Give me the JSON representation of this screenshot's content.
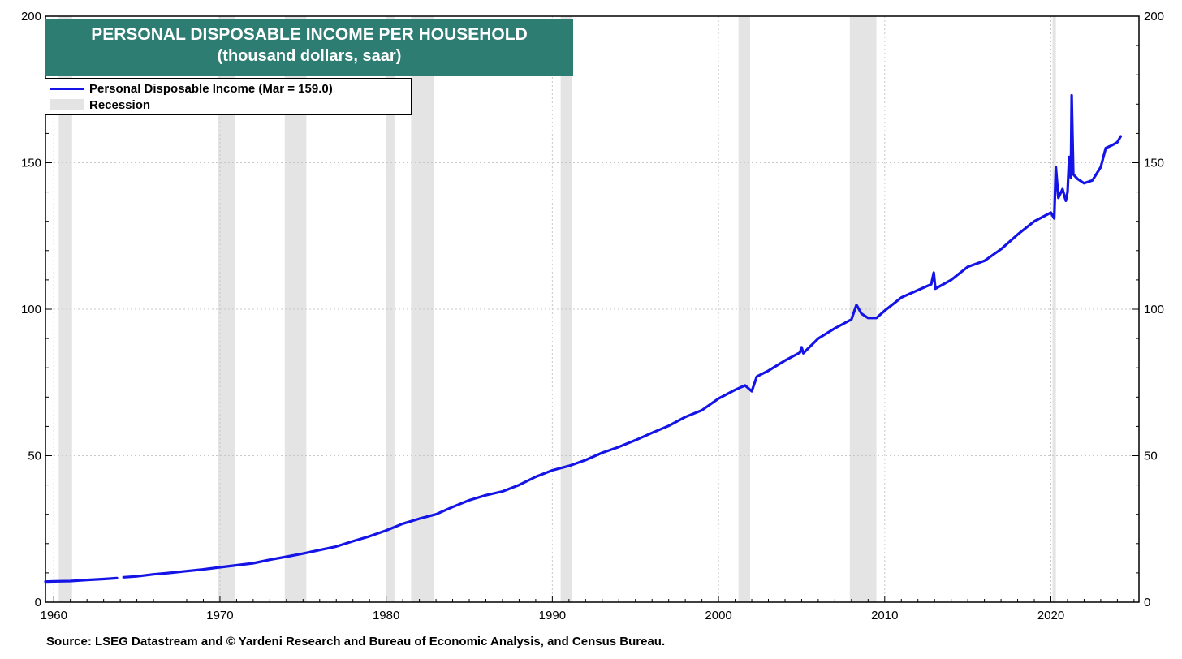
{
  "chart_data": {
    "type": "line",
    "title": "PERSONAL DISPOSABLE INCOME PER HOUSEHOLD",
    "subtitle": "(thousand dollars, saar)",
    "xlim": [
      1959.5,
      2025.3
    ],
    "ylim": [
      0,
      200
    ],
    "y_ticks": [
      0,
      50,
      100,
      150,
      200
    ],
    "x_ticks": [
      1960,
      1970,
      1980,
      1990,
      2000,
      2010,
      2020
    ],
    "grid": true,
    "legend_placement": "top-left",
    "series": [
      {
        "name": "Personal Disposable Income (Mar = 159.0)",
        "color": "#1414e6",
        "points": [
          [
            1959.5,
            7.0
          ],
          [
            1960.0,
            7.1
          ],
          [
            1961.0,
            7.2
          ],
          [
            1962.0,
            7.6
          ],
          [
            1963.0,
            7.9
          ],
          [
            1963.8,
            8.2
          ],
          null,
          [
            1964.2,
            8.5
          ],
          [
            1965.0,
            8.8
          ],
          [
            1966.0,
            9.5
          ],
          [
            1967.0,
            10.0
          ],
          [
            1968.0,
            10.6
          ],
          [
            1969.0,
            11.2
          ],
          [
            1970.0,
            11.9
          ],
          [
            1971.0,
            12.6
          ],
          [
            1972.0,
            13.3
          ],
          [
            1973.0,
            14.5
          ],
          [
            1974.0,
            15.5
          ],
          [
            1975.0,
            16.6
          ],
          [
            1976.0,
            17.8
          ],
          [
            1977.0,
            19.0
          ],
          [
            1978.0,
            20.8
          ],
          [
            1979.0,
            22.5
          ],
          [
            1980.0,
            24.5
          ],
          [
            1981.0,
            26.8
          ],
          [
            1982.0,
            28.5
          ],
          [
            1983.0,
            30.0
          ],
          [
            1984.0,
            32.5
          ],
          [
            1985.0,
            34.8
          ],
          [
            1986.0,
            36.5
          ],
          [
            1987.0,
            37.8
          ],
          [
            1988.0,
            40.0
          ],
          [
            1989.0,
            42.8
          ],
          [
            1990.0,
            45.0
          ],
          [
            1991.0,
            46.5
          ],
          [
            1992.0,
            48.5
          ],
          [
            1993.0,
            51.0
          ],
          [
            1994.0,
            53.0
          ],
          [
            1995.0,
            55.3
          ],
          [
            1996.0,
            57.8
          ],
          [
            1997.0,
            60.2
          ],
          [
            1998.0,
            63.2
          ],
          [
            1999.0,
            65.5
          ],
          [
            2000.0,
            69.5
          ],
          [
            2001.0,
            72.5
          ],
          [
            2001.6,
            74.0
          ],
          [
            2002.0,
            72.0
          ],
          [
            2002.3,
            77.0
          ],
          [
            2003.0,
            79.0
          ],
          [
            2004.0,
            82.5
          ],
          [
            2004.9,
            85.2
          ],
          [
            2005.0,
            87.0
          ],
          [
            2005.1,
            85.0
          ],
          [
            2006.0,
            90.0
          ],
          [
            2007.0,
            93.5
          ],
          [
            2008.0,
            96.5
          ],
          [
            2008.3,
            101.5
          ],
          [
            2008.6,
            98.5
          ],
          [
            2009.0,
            97.0
          ],
          [
            2009.5,
            97.0
          ],
          [
            2010.0,
            99.5
          ],
          [
            2011.0,
            104.0
          ],
          [
            2012.0,
            106.5
          ],
          [
            2012.8,
            108.5
          ],
          [
            2012.95,
            112.5
          ],
          [
            2013.05,
            107.0
          ],
          [
            2014.0,
            110.0
          ],
          [
            2015.0,
            114.5
          ],
          [
            2016.0,
            116.5
          ],
          [
            2017.0,
            120.5
          ],
          [
            2018.0,
            125.5
          ],
          [
            2019.0,
            130.0
          ],
          [
            2020.0,
            133.0
          ],
          [
            2020.2,
            131.0
          ],
          [
            2020.3,
            148.5
          ],
          [
            2020.45,
            138.0
          ],
          [
            2020.7,
            141.0
          ],
          [
            2020.9,
            137.0
          ],
          [
            2021.0,
            140.0
          ],
          [
            2021.1,
            152.0
          ],
          [
            2021.2,
            145.0
          ],
          [
            2021.25,
            173.0
          ],
          [
            2021.35,
            146.0
          ],
          [
            2021.6,
            144.5
          ],
          [
            2022.0,
            143.0
          ],
          [
            2022.5,
            144.0
          ],
          [
            2023.0,
            148.5
          ],
          [
            2023.3,
            155.0
          ],
          [
            2023.7,
            156.0
          ],
          [
            2024.0,
            157.0
          ],
          [
            2024.2,
            159.0
          ]
        ]
      }
    ],
    "recessions": [
      [
        1960.3,
        1961.1
      ],
      [
        1969.9,
        1970.9
      ],
      [
        1973.9,
        1975.2
      ],
      [
        1980.0,
        1980.5
      ],
      [
        1981.5,
        1982.9
      ],
      [
        1990.5,
        1991.2
      ],
      [
        2001.2,
        2001.9
      ],
      [
        2007.9,
        2009.5
      ],
      [
        2020.1,
        2020.3
      ]
    ],
    "legend": [
      {
        "label": "Personal Disposable Income (Mar = 159.0)"
      },
      {
        "label": "Recession"
      }
    ],
    "source": "Source: LSEG Datastream and © Yardeni Research and Bureau of Economic Analysis, and Census Bureau.",
    "colors": {
      "title_bg": "#2e7d73",
      "recession": "#e4e4e4",
      "line": "#1414e6"
    }
  }
}
